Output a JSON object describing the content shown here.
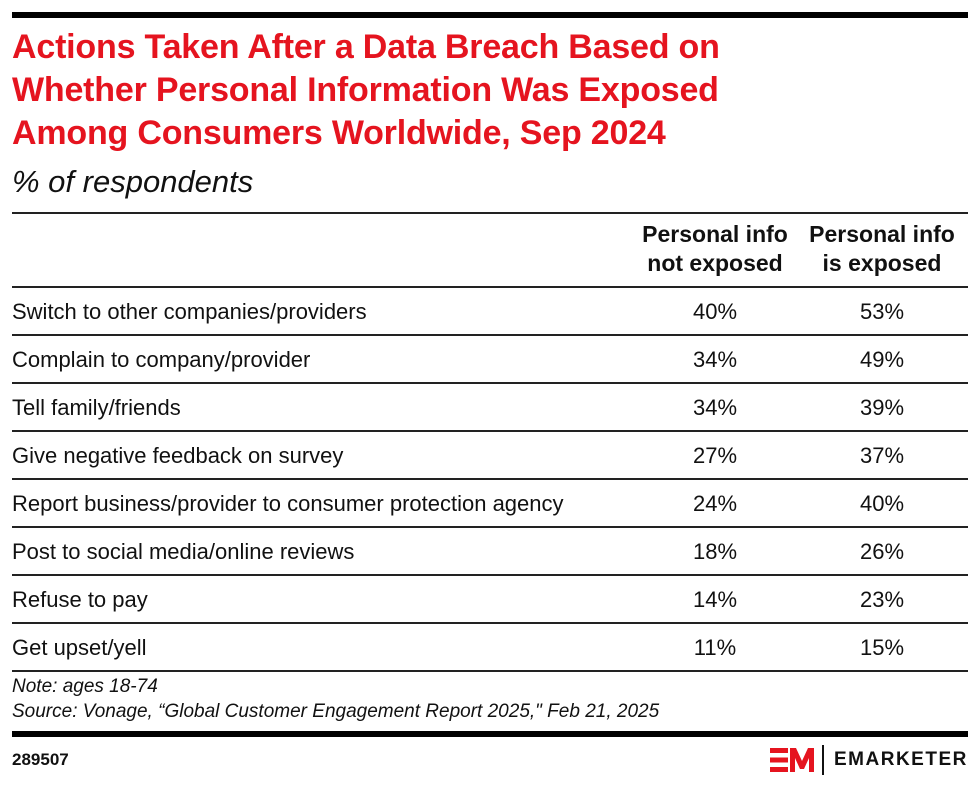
{
  "chart_data": {
    "type": "table",
    "title": "Actions Taken After a Data Breach Based on Whether Personal Information Was Exposed Among Consumers Worldwide, Sep 2024",
    "title_lines": [
      "Actions Taken After a Data Breach Based on",
      "Whether Personal Information Was Exposed",
      "Among Consumers Worldwide, Sep 2024"
    ],
    "subtitle": "% of respondents",
    "columns": [
      {
        "line1": "Personal info",
        "line2": "not exposed"
      },
      {
        "line1": "Personal info",
        "line2": "is exposed"
      }
    ],
    "categories": [
      "Switch to other companies/providers",
      "Complain to company/provider",
      "Tell family/friends",
      "Give negative feedback on survey",
      "Report business/provider to consumer protection agency",
      "Post to social media/online reviews",
      "Refuse to pay",
      "Get upset/yell"
    ],
    "series": [
      {
        "name": "Personal info not exposed",
        "values": [
          40,
          34,
          34,
          27,
          24,
          18,
          14,
          11
        ]
      },
      {
        "name": "Personal info is exposed",
        "values": [
          53,
          49,
          39,
          37,
          40,
          26,
          23,
          15
        ]
      }
    ],
    "rows": [
      {
        "label": "Switch to other companies/providers",
        "not_exposed": "40%",
        "exposed": "53%"
      },
      {
        "label": "Complain to company/provider",
        "not_exposed": "34%",
        "exposed": "49%"
      },
      {
        "label": "Tell family/friends",
        "not_exposed": "34%",
        "exposed": "39%"
      },
      {
        "label": "Give negative feedback on survey",
        "not_exposed": "27%",
        "exposed": "37%"
      },
      {
        "label": "Report business/provider to consumer protection agency",
        "not_exposed": "24%",
        "exposed": "40%"
      },
      {
        "label": "Post to social media/online reviews",
        "not_exposed": "18%",
        "exposed": "26%"
      },
      {
        "label": "Refuse to pay",
        "not_exposed": "14%",
        "exposed": "23%"
      },
      {
        "label": "Get upset/yell",
        "not_exposed": "11%",
        "exposed": "15%"
      }
    ],
    "unit": "%"
  },
  "note": "Note: ages 18-74",
  "source": "Source: Vonage, “Global Customer Engagement Report 2025,\" Feb 21, 2025",
  "chart_id": "289507",
  "brand": {
    "name": "EMARKETER",
    "accent": "#e5141f"
  }
}
